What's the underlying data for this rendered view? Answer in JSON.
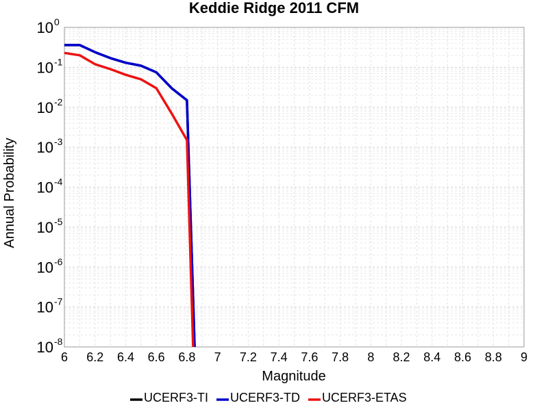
{
  "chart_data": {
    "type": "line",
    "title": "Keddie Ridge 2011 CFM",
    "xlabel": "Magnitude",
    "ylabel": "Annual Probability",
    "xlim": [
      6,
      9
    ],
    "ylim": [
      1e-08,
      1
    ],
    "yscale": "log",
    "grid": true,
    "legend_position": "bottom",
    "x_ticks": [
      "6",
      "6.2",
      "6.4",
      "6.6",
      "6.8",
      "7",
      "7.2",
      "7.4",
      "7.6",
      "7.8",
      "8",
      "8.2",
      "8.4",
      "8.6",
      "8.8",
      "9"
    ],
    "y_ticks": [
      {
        "base": "10",
        "exp": "0"
      },
      {
        "base": "10",
        "exp": "-1"
      },
      {
        "base": "10",
        "exp": "-2"
      },
      {
        "base": "10",
        "exp": "-3"
      },
      {
        "base": "10",
        "exp": "-4"
      },
      {
        "base": "10",
        "exp": "-5"
      },
      {
        "base": "10",
        "exp": "-6"
      },
      {
        "base": "10",
        "exp": "-7"
      },
      {
        "base": "10",
        "exp": "-8"
      }
    ],
    "series": [
      {
        "name": "UCERF3-TI",
        "color": "#000000",
        "x": [
          6.0,
          6.1,
          6.2,
          6.3,
          6.4,
          6.5,
          6.6,
          6.7,
          6.8,
          6.85
        ],
        "y": [
          0.36,
          0.36,
          0.24,
          0.17,
          0.13,
          0.11,
          0.075,
          0.03,
          0.015,
          1e-08
        ]
      },
      {
        "name": "UCERF3-TD",
        "color": "#0000cc",
        "x": [
          6.0,
          6.1,
          6.2,
          6.3,
          6.4,
          6.5,
          6.6,
          6.7,
          6.8,
          6.85
        ],
        "y": [
          0.36,
          0.36,
          0.24,
          0.17,
          0.13,
          0.11,
          0.075,
          0.03,
          0.015,
          1e-08
        ]
      },
      {
        "name": "UCERF3-ETAS",
        "color": "#ee1111",
        "x": [
          6.0,
          6.1,
          6.2,
          6.3,
          6.4,
          6.5,
          6.6,
          6.7,
          6.8,
          6.84
        ],
        "y": [
          0.23,
          0.2,
          0.12,
          0.09,
          0.065,
          0.05,
          0.03,
          0.007,
          0.0015,
          1e-08
        ]
      }
    ]
  }
}
